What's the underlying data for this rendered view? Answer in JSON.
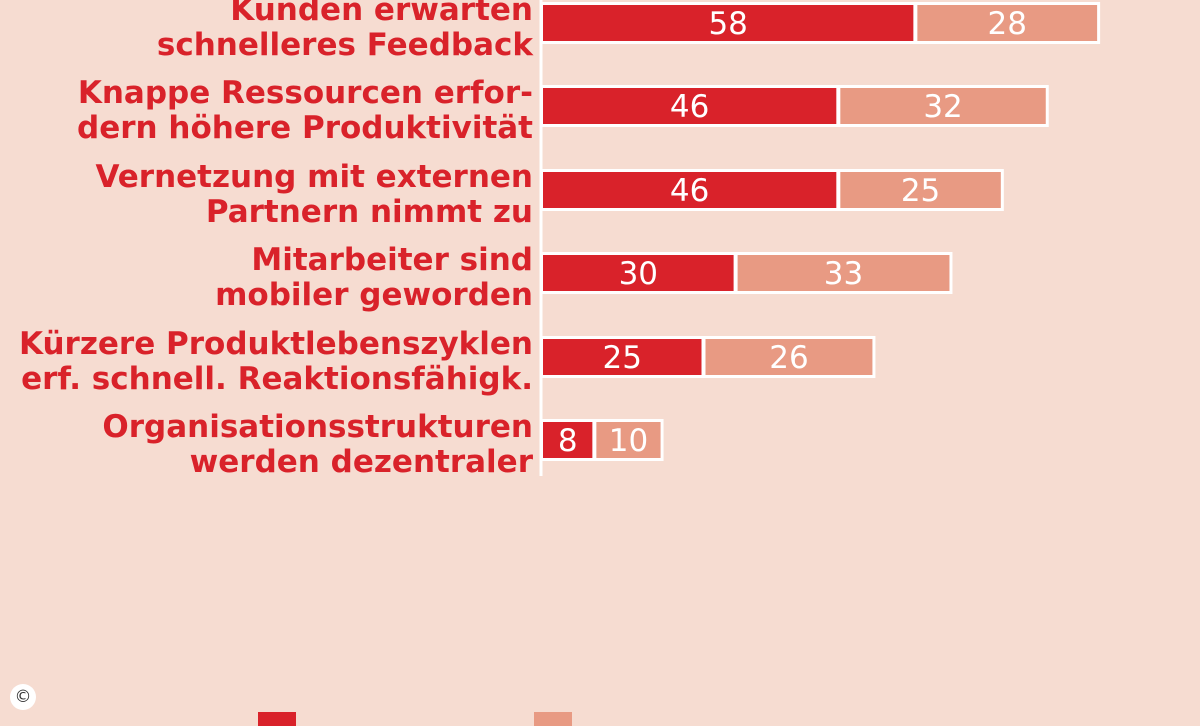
{
  "chart_data": {
    "type": "bar",
    "stacked": true,
    "orientation": "horizontal",
    "categories": [
      [
        "Kunden erwarten",
        "schnelleres Feedback"
      ],
      [
        "Knappe Ressourcen erfor-",
        "dern höhere Produktivität"
      ],
      [
        "Vernetzung mit externen",
        "Partnern nimmt zu"
      ],
      [
        "Mitarbeiter sind",
        "mobiler geworden"
      ],
      [
        "Kürzere Produktlebenszyklen",
        "erf. schnell. Reaktionsfähigk."
      ],
      [
        "Organisationsstrukturen",
        "werden dezentraler"
      ]
    ],
    "series": [
      {
        "values": [
          58,
          46,
          46,
          30,
          25,
          8
        ],
        "color": "#d9222a"
      },
      {
        "values": [
          28,
          32,
          25,
          33,
          26,
          10
        ],
        "color": "#e89a83"
      }
    ],
    "grid": false,
    "legend": "bottom"
  },
  "colors": {
    "background": "#f6dcd1",
    "label": "#d9222a",
    "series1": "#d9222a",
    "series2": "#e89a83",
    "axis": "#ffffff"
  },
  "copyright": "©"
}
